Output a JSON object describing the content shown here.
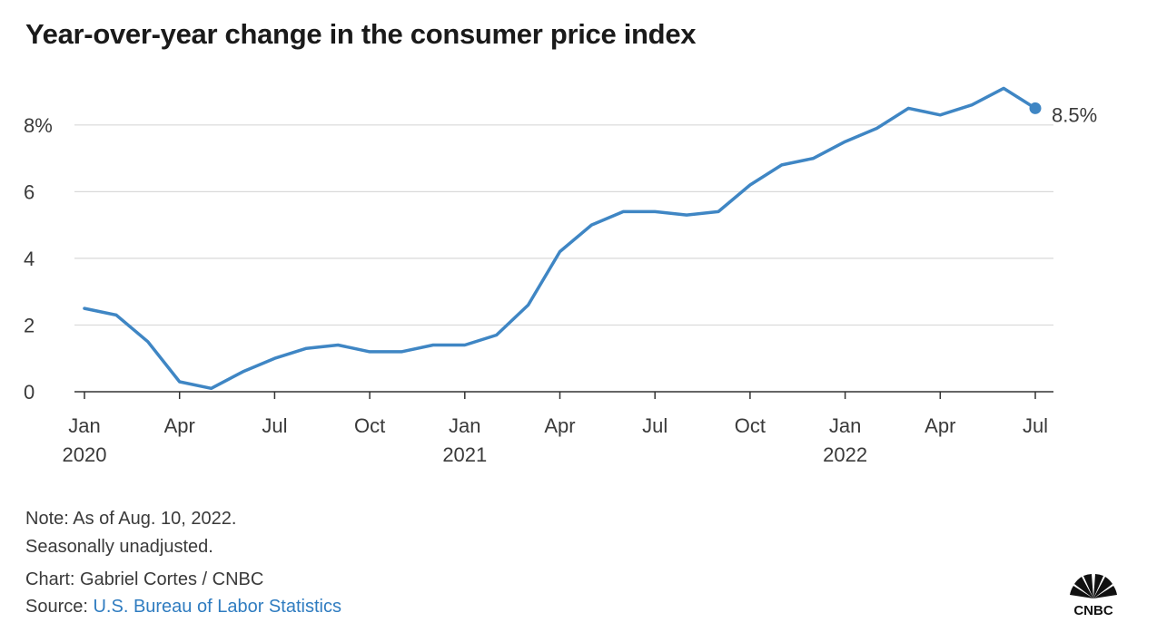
{
  "title": "Year-over-year change in the consumer price index",
  "colors": {
    "line": "#3f86c4",
    "grid": "#d9d9d9",
    "axis": "#333333"
  },
  "chart_data": {
    "type": "line",
    "title": "Year-over-year change in the consumer price index",
    "xlabel": "",
    "ylabel": "",
    "ylim": [
      0,
      9.3
    ],
    "grid": true,
    "y_ticks": [
      {
        "value": 0,
        "label": "0"
      },
      {
        "value": 2,
        "label": "2"
      },
      {
        "value": 4,
        "label": "4"
      },
      {
        "value": 6,
        "label": "6"
      },
      {
        "value": 8,
        "label": "8%"
      }
    ],
    "x_ticks": [
      {
        "date": "2020-01",
        "label": "Jan",
        "year": "2020"
      },
      {
        "date": "2020-04",
        "label": "Apr",
        "year": ""
      },
      {
        "date": "2020-07",
        "label": "Jul",
        "year": ""
      },
      {
        "date": "2020-10",
        "label": "Oct",
        "year": ""
      },
      {
        "date": "2021-01",
        "label": "Jan",
        "year": "2021"
      },
      {
        "date": "2021-04",
        "label": "Apr",
        "year": ""
      },
      {
        "date": "2021-07",
        "label": "Jul",
        "year": ""
      },
      {
        "date": "2021-10",
        "label": "Oct",
        "year": ""
      },
      {
        "date": "2022-01",
        "label": "Jan",
        "year": "2022"
      },
      {
        "date": "2022-04",
        "label": "Apr",
        "year": ""
      },
      {
        "date": "2022-07",
        "label": "Jul",
        "year": ""
      }
    ],
    "x": [
      "2020-01",
      "2020-02",
      "2020-03",
      "2020-04",
      "2020-05",
      "2020-06",
      "2020-07",
      "2020-08",
      "2020-09",
      "2020-10",
      "2020-11",
      "2020-12",
      "2021-01",
      "2021-02",
      "2021-03",
      "2021-04",
      "2021-05",
      "2021-06",
      "2021-07",
      "2021-08",
      "2021-09",
      "2021-10",
      "2021-11",
      "2021-12",
      "2022-01",
      "2022-02",
      "2022-03",
      "2022-04",
      "2022-05",
      "2022-06",
      "2022-07"
    ],
    "values": [
      2.5,
      2.3,
      1.5,
      0.3,
      0.1,
      0.6,
      1.0,
      1.3,
      1.4,
      1.2,
      1.2,
      1.4,
      1.4,
      1.7,
      2.6,
      4.2,
      5.0,
      5.4,
      5.4,
      5.3,
      5.4,
      6.2,
      6.8,
      7.0,
      7.5,
      7.9,
      8.5,
      8.3,
      8.6,
      9.1,
      8.5
    ],
    "end_label": "8.5%"
  },
  "footer": {
    "note": "Note: As of Aug. 10, 2022.",
    "note2": "Seasonally unadjusted.",
    "credit": "Chart: Gabriel Cortes / CNBC",
    "source_label": "Source: ",
    "source_link": "U.S. Bureau of Labor Statistics"
  },
  "logo": {
    "text": "CNBC",
    "icon": "peacock-icon"
  }
}
